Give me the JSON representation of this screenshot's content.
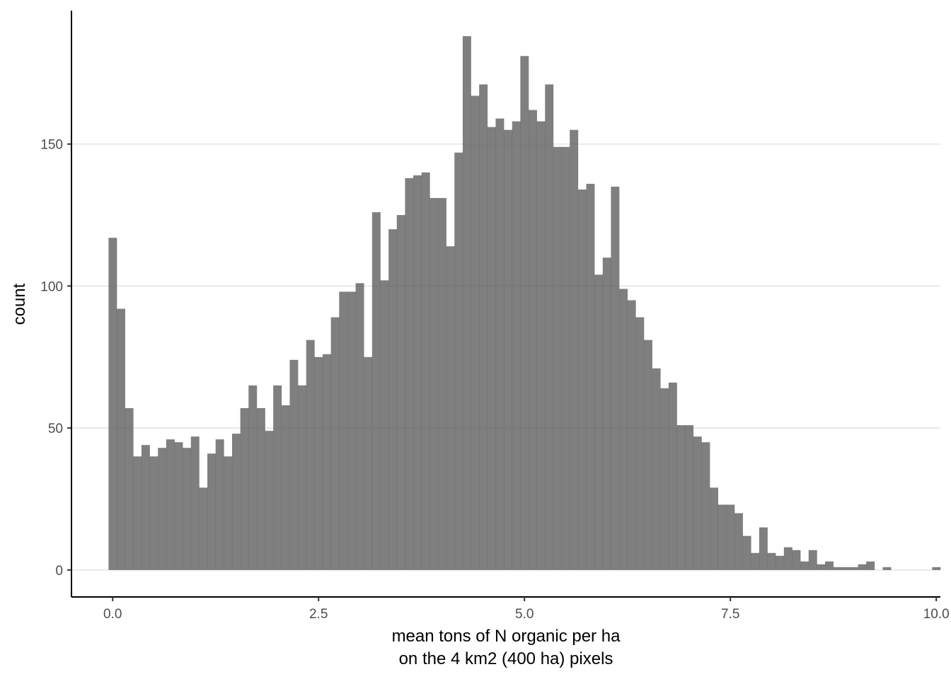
{
  "chart_data": {
    "type": "bar",
    "subtype": "histogram",
    "xlabel_line1": "mean tons of N organic per ha",
    "xlabel_line2": "on the 4 km2 (400 ha) pixels",
    "ylabel": "count",
    "xlim": [
      -0.5,
      10.05
    ],
    "ylim": [
      -9.5,
      197
    ],
    "grid": "horizontal major gridlines",
    "legend": "none",
    "colors": {
      "bar": "#595959",
      "bar_opacity": 0.77,
      "grid": "#ebebeb",
      "axis": "#000000"
    },
    "x_ticks": [
      {
        "value": 0,
        "label": "0.0"
      },
      {
        "value": 2.5,
        "label": "2.5"
      },
      {
        "value": 5,
        "label": "5.0"
      },
      {
        "value": 7.5,
        "label": "7.5"
      },
      {
        "value": 10,
        "label": "10.0"
      }
    ],
    "y_ticks": [
      {
        "value": 0,
        "label": "0"
      },
      {
        "value": 50,
        "label": "50"
      },
      {
        "value": 100,
        "label": "100"
      },
      {
        "value": 150,
        "label": "150"
      }
    ],
    "bin_start": -0.05,
    "bin_width": 0.1,
    "counts": [
      117,
      92,
      57,
      40,
      44,
      40,
      43,
      46,
      45,
      43,
      47,
      29,
      41,
      46,
      40,
      48,
      57,
      65,
      57,
      49,
      65,
      58,
      74,
      65,
      81,
      75,
      76,
      89,
      98,
      98,
      101,
      75,
      126,
      102,
      120,
      125,
      138,
      139,
      140,
      131,
      131,
      114,
      147,
      188,
      167,
      171,
      156,
      159,
      155,
      158,
      181,
      162,
      158,
      171,
      149,
      149,
      155,
      134,
      136,
      104,
      110,
      135,
      99,
      95,
      89,
      81,
      71,
      64,
      66,
      51,
      51,
      47,
      45,
      29,
      23,
      23,
      20,
      12,
      6,
      15,
      6,
      5,
      8,
      7,
      3,
      7,
      2,
      3,
      1,
      1,
      1,
      2,
      3,
      0,
      1,
      0,
      0,
      0,
      0,
      0,
      1
    ]
  }
}
